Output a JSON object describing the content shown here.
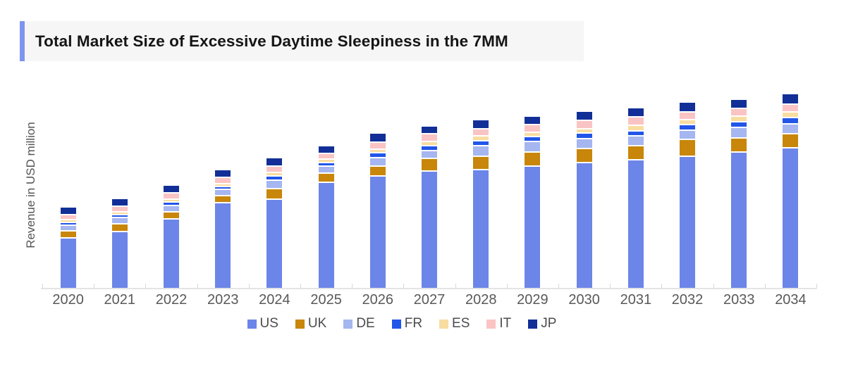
{
  "header": {
    "accent_color": "#7d95ef",
    "panel_background": "#f6f6f6"
  },
  "chart_data": {
    "type": "bar",
    "stacked": true,
    "title": "Total Market Size of Excessive Daytime Sleepiness in the 7MM",
    "xlabel": "",
    "ylabel": "Revenue in USD million",
    "legend_position": "bottom-center",
    "grid": false,
    "y_axis_tick_labels": "none (no numeric scale shown)",
    "value_units": "proportional estimates read from bar pixel heights (y-axis is unlabeled)",
    "categories": [
      "2020",
      "2021",
      "2022",
      "2023",
      "2024",
      "2025",
      "2026",
      "2027",
      "2028",
      "2029",
      "2030",
      "2031",
      "2032",
      "2033",
      "2034"
    ],
    "stack_order_bottom_to_top": [
      "US",
      "UK",
      "DE",
      "FR",
      "ES",
      "IT",
      "JP"
    ],
    "series": [
      {
        "name": "US",
        "color": "#6c85e8",
        "values": [
          72,
          81,
          99,
          122,
          127,
          151,
          160,
          167,
          169,
          174,
          179,
          183,
          188,
          194,
          200
        ]
      },
      {
        "name": "UK",
        "color": "#c8860a",
        "values": [
          10,
          11,
          10,
          10,
          15,
          13,
          14,
          18,
          19,
          20,
          20,
          20,
          24,
          20,
          20
        ]
      },
      {
        "name": "DE",
        "color": "#a5b6f0",
        "values": [
          8,
          9,
          9,
          9,
          12,
          10,
          12,
          11,
          15,
          15,
          14,
          14,
          13,
          15,
          14
        ]
      },
      {
        "name": "FR",
        "color": "#2256e8",
        "values": [
          4,
          4,
          5,
          4,
          6,
          5,
          7,
          7,
          7,
          7,
          8,
          7,
          8,
          8,
          9
        ]
      },
      {
        "name": "ES",
        "color": "#f8dda1",
        "values": [
          4,
          4,
          4,
          4,
          5,
          5,
          5,
          6,
          7,
          6,
          6,
          8,
          7,
          8,
          8
        ]
      },
      {
        "name": "IT",
        "color": "#fbc4c4",
        "values": [
          7,
          8,
          9,
          9,
          9,
          8,
          10,
          11,
          10,
          11,
          12,
          12,
          11,
          11,
          11
        ]
      },
      {
        "name": "JP",
        "color": "#112f97",
        "values": [
          11,
          11,
          11,
          11,
          12,
          11,
          13,
          11,
          13,
          12,
          13,
          13,
          14,
          13,
          15
        ]
      }
    ],
    "totals": [
      116,
      128,
      147,
      169,
      186,
      203,
      221,
      231,
      240,
      245,
      252,
      257,
      265,
      269,
      277
    ]
  },
  "axis": {
    "line_color": "#e4e4e4",
    "tick_color": "#d9d9d9",
    "label_color": "#595959"
  }
}
